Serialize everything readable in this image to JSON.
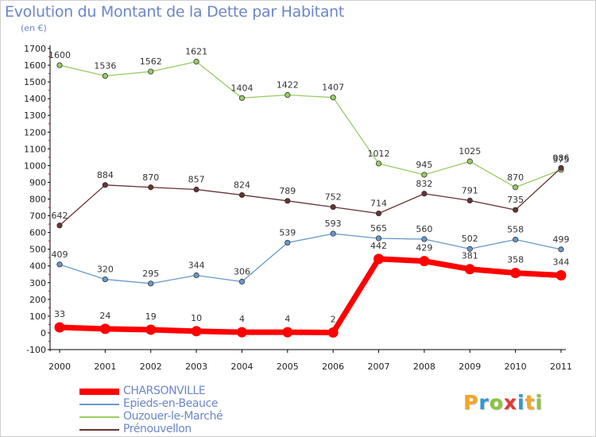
{
  "header": {
    "title": "Evolution du Montant de la Dette par Habitant",
    "unit": "(en €)"
  },
  "logo": {
    "text": "Proxiti",
    "letters": [
      "P",
      "r",
      "o",
      "x",
      "i",
      "t",
      "i"
    ],
    "colors": [
      "#f5a623",
      "#2f9ad3",
      "#8cc43c",
      "#e03a3a",
      "#2f9ad3",
      "#f5a623",
      "#8cc43c"
    ]
  },
  "chart_data": {
    "type": "line",
    "title": "Evolution du Montant de la Dette par Habitant",
    "ylabel": "(en €)",
    "xlabel": "",
    "x": [
      "2000",
      "2001",
      "2002",
      "2003",
      "2004",
      "2005",
      "2006",
      "2007",
      "2008",
      "2009",
      "2010",
      "2011"
    ],
    "ylim": [
      -100,
      1700
    ],
    "ytick_step": 100,
    "grid": false,
    "legend_position": "bottom-left",
    "series": [
      {
        "name": "CHARSONVILLE",
        "color": "#ff0000",
        "values": [
          33,
          24,
          19,
          10,
          4,
          4,
          2,
          442,
          429,
          381,
          358,
          344
        ]
      },
      {
        "name": "Epieds-en-Beauce",
        "color": "#6699cc",
        "values": [
          409,
          320,
          295,
          344,
          306,
          539,
          593,
          565,
          560,
          502,
          558,
          499
        ]
      },
      {
        "name": "Ouzouer-le-Marché",
        "color": "#99cc66",
        "values": [
          1600,
          1536,
          1562,
          1621,
          1404,
          1422,
          1407,
          1012,
          945,
          1025,
          870,
          975
        ]
      },
      {
        "name": "Prénouvellon",
        "color": "#663333",
        "values": [
          642,
          884,
          870,
          857,
          824,
          789,
          752,
          714,
          832,
          791,
          735,
          986
        ]
      }
    ]
  }
}
